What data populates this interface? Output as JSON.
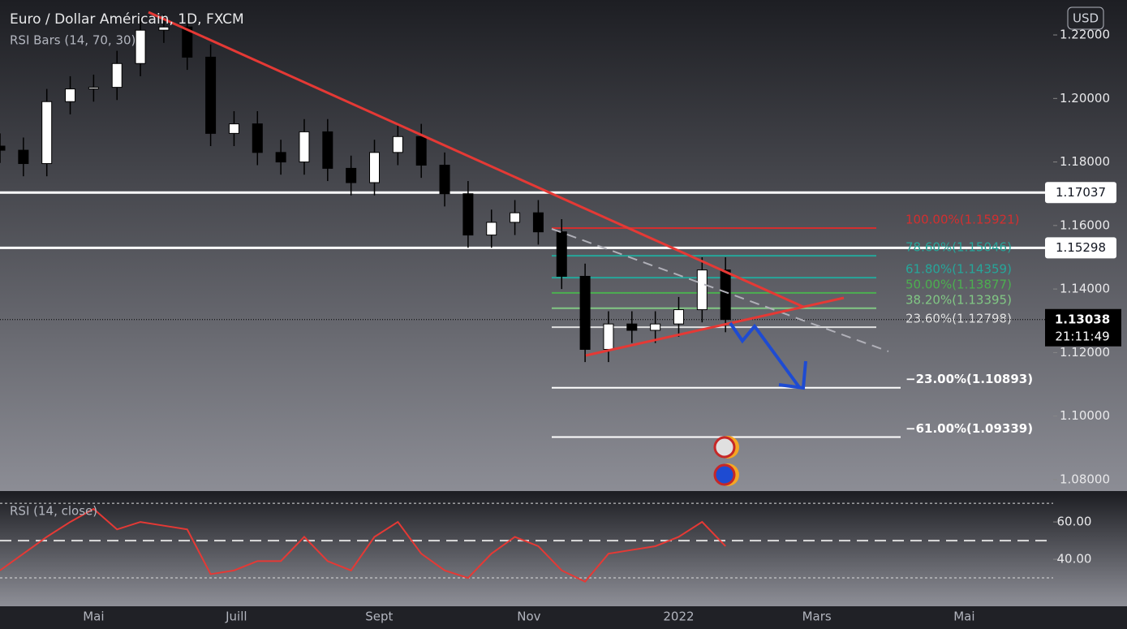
{
  "chart_data": [
    {
      "type": "candlestick",
      "title": "Euro / Dollar Américain, 1D, FXCM",
      "subtitle": "RSI Bars (14, 70, 30)",
      "currency": "USD",
      "x": [
        0,
        10,
        20,
        30,
        40,
        50,
        60,
        70,
        80,
        90,
        100,
        110,
        120,
        130,
        140,
        150,
        160,
        170,
        180,
        190,
        200,
        210,
        220,
        230,
        240,
        250,
        260,
        270,
        280,
        290,
        300,
        310
      ],
      "open": [
        1.185,
        1.1837,
        1.1795,
        1.199,
        1.203,
        1.2035,
        1.211,
        1.2215,
        1.2225,
        1.213,
        1.189,
        1.192,
        1.183,
        1.18,
        1.1895,
        1.178,
        1.1735,
        1.183,
        1.188,
        1.179,
        1.17,
        1.157,
        1.161,
        1.164,
        1.158,
        1.144,
        1.121,
        1.129,
        1.127,
        1.129,
        1.1335,
        1.146
      ],
      "high": [
        1.189,
        1.1877,
        1.203,
        1.207,
        1.2075,
        1.215,
        1.2255,
        1.2265,
        1.2265,
        1.217,
        1.196,
        1.196,
        1.187,
        1.1935,
        1.1935,
        1.182,
        1.187,
        1.192,
        1.192,
        1.183,
        1.174,
        1.165,
        1.168,
        1.168,
        1.162,
        1.148,
        1.133,
        1.133,
        1.133,
        1.1375,
        1.15,
        1.15
      ],
      "low": [
        1.1797,
        1.1755,
        1.1755,
        1.195,
        1.199,
        1.1995,
        1.207,
        1.2175,
        1.209,
        1.185,
        1.185,
        1.179,
        1.176,
        1.176,
        1.174,
        1.1695,
        1.1695,
        1.179,
        1.175,
        1.166,
        1.153,
        1.153,
        1.157,
        1.154,
        1.14,
        1.117,
        1.117,
        1.123,
        1.123,
        1.125,
        1.1295,
        1.1264
      ],
      "close": [
        1.1837,
        1.1795,
        1.199,
        1.203,
        1.2035,
        1.211,
        1.2215,
        1.2225,
        1.213,
        1.189,
        1.192,
        1.183,
        1.18,
        1.1895,
        1.178,
        1.1735,
        1.183,
        1.188,
        1.179,
        1.17,
        1.157,
        1.161,
        1.164,
        1.158,
        1.144,
        1.121,
        1.129,
        1.127,
        1.129,
        1.1335,
        1.146,
        1.1304
      ],
      "up_color": "#ffffff",
      "down_color": "#000000",
      "xlim": [
        0,
        450
      ],
      "xticks": [
        {
          "value": 40,
          "label": "Mai"
        },
        {
          "value": 101,
          "label": "Juill"
        },
        {
          "value": 162,
          "label": "Sept"
        },
        {
          "value": 226,
          "label": "Nov"
        },
        {
          "value": 290,
          "label": "2022"
        },
        {
          "value": 349,
          "label": "Mars"
        },
        {
          "value": 412,
          "label": "Mai"
        }
      ],
      "ylim": [
        1.0764,
        1.231
      ],
      "yticks": [
        {
          "value": 1.08,
          "label": "1.08000"
        },
        {
          "value": 1.1,
          "label": "1.10000"
        },
        {
          "value": 1.12,
          "label": "1.12000"
        },
        {
          "value": 1.14,
          "label": "1.14000"
        },
        {
          "value": 1.16,
          "label": "1.16000"
        },
        {
          "value": 1.18,
          "label": "1.18000"
        },
        {
          "value": 1.2,
          "label": "1.20000"
        },
        {
          "value": 1.22,
          "label": "1.22000"
        }
      ],
      "levels": [
        1.17037,
        1.15298
      ],
      "last_price": 1.13038,
      "countdown": "21:11:49",
      "fib": [
        {
          "value": 1.15921,
          "label": "100.00%(1.15921)",
          "color": "#d32f2f"
        },
        {
          "value": 1.15046,
          "label": "78.60%(1.15046)",
          "color": "#26a69a"
        },
        {
          "value": 1.14359,
          "label": "61.80%(1.14359)",
          "color": "#26a69a"
        },
        {
          "value": 1.13877,
          "label": "50.00%(1.13877)",
          "color": "#4caf50"
        },
        {
          "value": 1.13395,
          "label": "38.20%(1.13395)",
          "color": "#81c784"
        },
        {
          "value": 1.12798,
          "label": "23.60%(1.12798)",
          "color": "#e0e0e0"
        },
        {
          "value": 1.10893,
          "label": "−23.00%(1.10893)",
          "color": "#ffffff"
        },
        {
          "value": 1.09339,
          "label": "−61.00%(1.09339)",
          "color": "#ffffff"
        }
      ]
    },
    {
      "type": "line",
      "title": "RSI (14, close)",
      "x": [
        0,
        10,
        20,
        30,
        40,
        50,
        60,
        70,
        80,
        90,
        100,
        110,
        120,
        130,
        140,
        150,
        160,
        170,
        180,
        190,
        200,
        210,
        220,
        230,
        240,
        250,
        260,
        270,
        280,
        290,
        300,
        310
      ],
      "values": [
        34,
        43,
        52,
        60,
        67,
        56,
        60,
        58,
        56,
        32,
        34,
        39,
        39,
        52,
        39,
        34,
        52,
        60,
        43,
        34,
        30,
        43,
        52,
        47,
        34,
        28,
        43,
        45,
        47,
        52,
        60,
        47
      ],
      "color": "#e53935",
      "ylim": [
        14.8,
        75.7
      ],
      "yticks": [
        {
          "value": 40,
          "label": "40.00"
        },
        {
          "value": 60,
          "label": "60.00"
        }
      ],
      "bands": [
        30,
        50,
        70
      ]
    }
  ]
}
